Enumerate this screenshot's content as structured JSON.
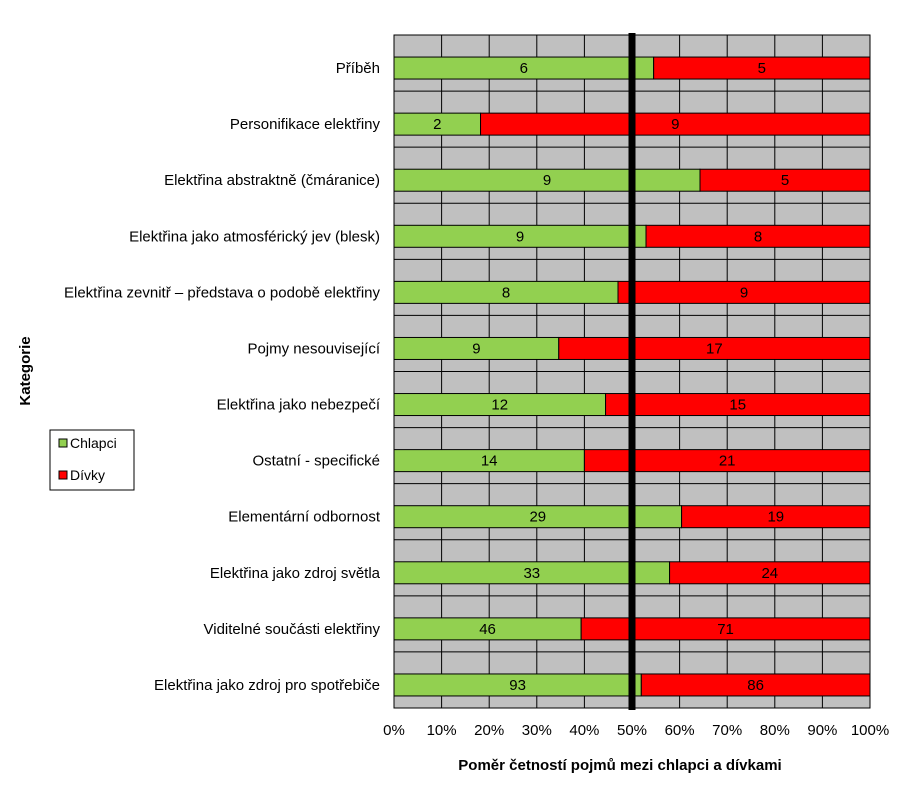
{
  "chart_data": {
    "type": "bar",
    "orientation": "horizontal",
    "stacking": "percent",
    "categories": [
      "Příběh",
      "Personifikace elektřiny",
      "Elektřina abstraktně (čmáranice)",
      "Elektřina  jako atmosférický jev (blesk)",
      "Elektřina zevnitř – představa  o podobě elektřiny",
      "Pojmy nesouvisející",
      "Elektřina jako nebezpečí",
      "Ostatní  - specifické",
      "Elementární odbornost",
      "Elektřina jako zdroj světla",
      "Viditelné součásti elektřiny",
      "Elektřina jako zdroj pro spotřebiče"
    ],
    "series": [
      {
        "name": "Chlapci",
        "color": "#92D050",
        "values": [
          6,
          2,
          9,
          9,
          8,
          9,
          12,
          14,
          29,
          33,
          46,
          93
        ]
      },
      {
        "name": "Dívky",
        "color": "#FF0000",
        "values": [
          5,
          9,
          5,
          8,
          9,
          17,
          15,
          21,
          19,
          24,
          71,
          86
        ]
      }
    ],
    "xlabel": "Poměr četností pojmů mezi chlapci a dívkami",
    "ylabel": "Kategorie",
    "xticks": [
      "0%",
      "10%",
      "20%",
      "30%",
      "40%",
      "50%",
      "60%",
      "70%",
      "80%",
      "90%",
      "100%"
    ],
    "xlim": [
      0,
      100
    ],
    "reference_line": 50,
    "grid": true,
    "plot_background": "#C0C0C0",
    "legend_position": "left"
  }
}
